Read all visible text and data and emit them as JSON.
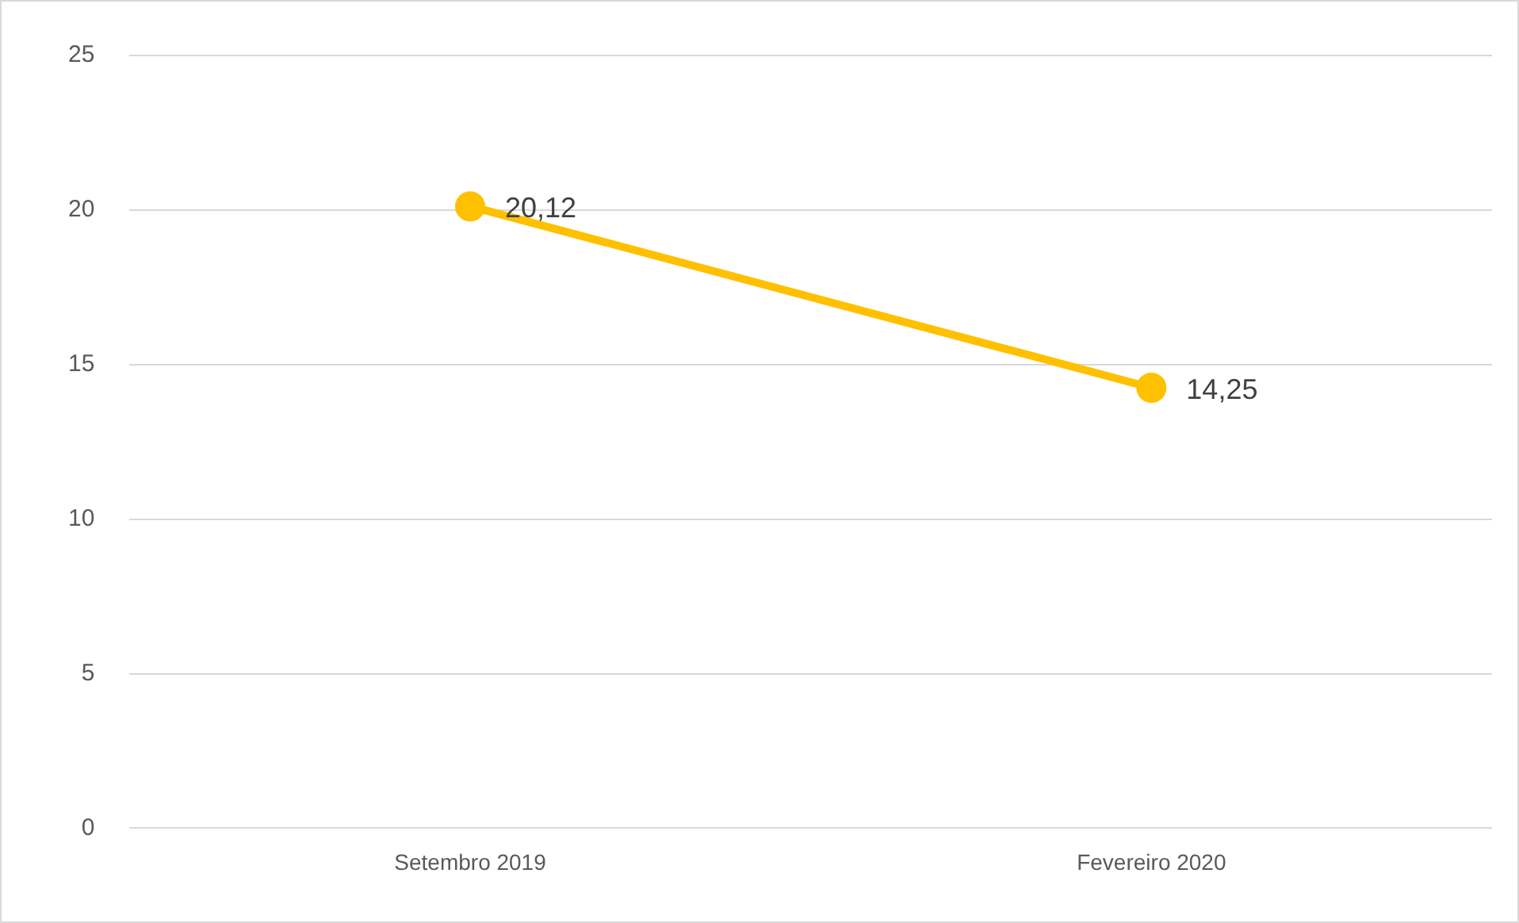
{
  "chart_data": {
    "type": "line",
    "categories": [
      "Setembro 2019",
      "Fevereiro 2020"
    ],
    "series": [
      {
        "color": "#ffc000",
        "values": [
          20.12,
          14.25
        ],
        "value_labels": [
          "20,12",
          "14,25"
        ]
      }
    ],
    "ylim": [
      0,
      25
    ],
    "yticks": [
      0,
      5,
      10,
      15,
      20,
      25
    ],
    "grid": "y",
    "legend": false,
    "marker": "circle",
    "line_style": "solid"
  }
}
